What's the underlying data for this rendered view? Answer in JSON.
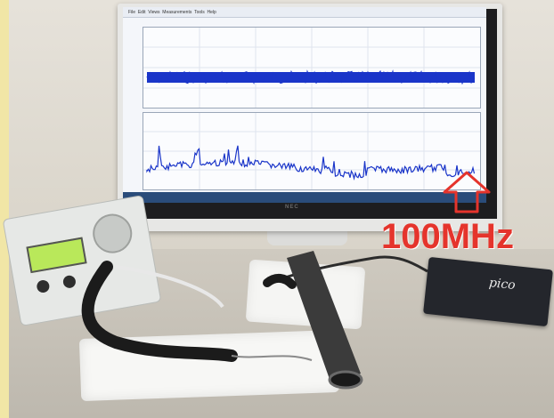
{
  "annotation": {
    "text": "100MHz",
    "color": "#e5342c",
    "arrow_icon": "up-arrow-icon"
  },
  "monitor": {
    "brand": "NEC",
    "menu_items": [
      "File",
      "Edit",
      "Views",
      "Measurements",
      "Tools",
      "Help"
    ]
  },
  "devices": {
    "oscilloscope_logo": "pico"
  },
  "colors": {
    "signal": "#1a35c9",
    "annotation": "#e5342c",
    "wall": "#e6e2da",
    "desk": "#c9c4b8"
  }
}
